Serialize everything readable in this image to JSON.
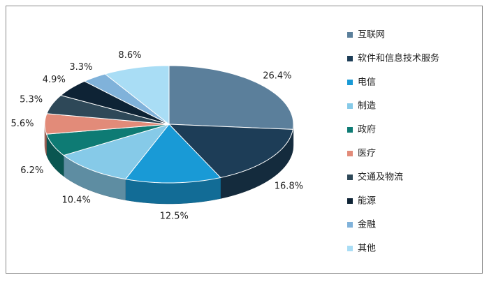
{
  "chart_data": {
    "type": "pie",
    "categories": [
      "互联网",
      "软件和信息技术服务",
      "电信",
      "制造",
      "政府",
      "医疗",
      "交通及物流",
      "能源",
      "金融",
      "其他"
    ],
    "values": [
      26.4,
      16.8,
      12.5,
      10.4,
      6.2,
      5.6,
      5.3,
      4.9,
      3.3,
      8.6
    ],
    "value_labels": [
      "26.4%",
      "16.8%",
      "12.5%",
      "10.4%",
      "6.2%",
      "5.6%",
      "5.3%",
      "4.9%",
      "3.3%",
      "8.6%"
    ],
    "colors": [
      "#5b7f9b",
      "#1d3d57",
      "#199ad6",
      "#86cae8",
      "#0e7b74",
      "#e28b79",
      "#2e4858",
      "#0e2335",
      "#80b2da",
      "#a9ddf5"
    ],
    "legend": "right"
  }
}
